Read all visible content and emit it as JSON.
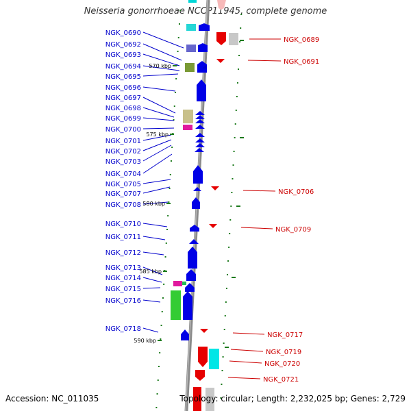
{
  "title": "Neisseria gonorrhoeae NCCP11945, complete genome",
  "accession": "Accession: NC_011035",
  "topology": "Topology: circular; Length: 2,232,025 bp; Genes: 2,729",
  "colors": {
    "backbone": "#8a8a8a",
    "forward_label": "#0000cc",
    "reverse_label": "#cc0000",
    "tick": "#1c7a1c"
  },
  "kbp_ticks": [
    "570 kbp",
    "575 kbp",
    "580 kbp",
    "585 kbp",
    "590 kbp"
  ],
  "left_labels": [
    "NGK_0690",
    "NGK_0692",
    "NGK_0693",
    "NGK_0694",
    "NGK_0695",
    "NGK_0696",
    "NGK_0697",
    "NGK_0698",
    "NGK_0699",
    "NGK_0700",
    "NGK_0701",
    "NGK_0702",
    "NGK_0703",
    "NGK_0704",
    "NGK_0705",
    "NGK_0707",
    "NGK_0708",
    "NGK_0710",
    "NGK_0711",
    "NGK_0712",
    "NGK_0713",
    "NGK_0714",
    "NGK_0715",
    "NGK_0716",
    "NGK_0718"
  ],
  "right_labels": [
    "NGK_0689",
    "NGK_0691",
    "NGK_0706",
    "NGK_0709",
    "NGK_0717",
    "NGK_0719",
    "NGK_0720",
    "NGK_0721"
  ]
}
